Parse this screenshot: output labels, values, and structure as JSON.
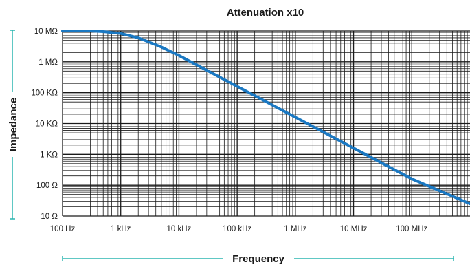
{
  "chart_data": {
    "type": "line",
    "title": "Attenuation x10",
    "xlabel": "Frequency",
    "ylabel": "Impedance",
    "x_scale": "log",
    "y_scale": "log",
    "xlim": [
      100,
      1000000000
    ],
    "ylim": [
      10,
      10000000
    ],
    "x_ticks": [
      {
        "value": 100,
        "label": "100 Hz"
      },
      {
        "value": 1000,
        "label": "1 kHz"
      },
      {
        "value": 10000,
        "label": "10 kHz"
      },
      {
        "value": 100000,
        "label": "100 kHz"
      },
      {
        "value": 1000000,
        "label": "1 MHz"
      },
      {
        "value": 10000000,
        "label": "10 MHz"
      },
      {
        "value": 100000000,
        "label": "100 MHz"
      }
    ],
    "y_ticks": [
      {
        "value": 10000000,
        "label": "10 MΩ"
      },
      {
        "value": 1000000,
        "label": "1 MΩ"
      },
      {
        "value": 100000,
        "label": "100 KΩ"
      },
      {
        "value": 10000,
        "label": "10 KΩ"
      },
      {
        "value": 1000,
        "label": "1 KΩ"
      },
      {
        "value": 100,
        "label": "100 Ω"
      },
      {
        "value": 10,
        "label": "10 Ω"
      }
    ],
    "grid": true,
    "series": [
      {
        "color": "#1a78c2",
        "x": [
          100,
          300,
          500,
          1000,
          2000,
          5000,
          10000,
          100000,
          1000000,
          10000000,
          100000000,
          1000000000
        ],
        "y": [
          10000000,
          10000000,
          9500000,
          8300000,
          6000000,
          3000000,
          1600000,
          160000,
          16000,
          1600,
          160,
          25
        ]
      }
    ]
  },
  "colors": {
    "curve": "#1a78c2",
    "accent": "#2bb5b0",
    "grid": "#1a1a1a"
  }
}
